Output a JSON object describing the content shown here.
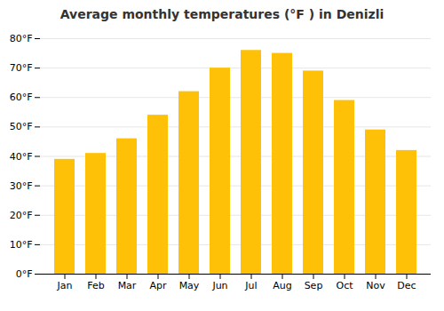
{
  "chart_data": {
    "type": "bar",
    "title": "Average monthly temperatures (°F ) in Denizli",
    "categories": [
      "Jan",
      "Feb",
      "Mar",
      "Apr",
      "May",
      "Jun",
      "Jul",
      "Aug",
      "Sep",
      "Oct",
      "Nov",
      "Dec"
    ],
    "values": [
      39,
      41,
      46,
      54,
      62,
      70,
      76,
      75,
      69,
      59,
      49,
      42
    ],
    "color": "#FFC107",
    "ylim": [
      0,
      80
    ],
    "yticks": [
      {
        "value": 0,
        "label": "0°F"
      },
      {
        "value": 10,
        "label": "10°F"
      },
      {
        "value": 20,
        "label": "20°F"
      },
      {
        "value": 30,
        "label": "30°F"
      },
      {
        "value": 40,
        "label": "40°F"
      },
      {
        "value": 50,
        "label": "50°F"
      },
      {
        "value": 60,
        "label": "60°F"
      },
      {
        "value": 70,
        "label": "70°F"
      },
      {
        "value": 80,
        "label": "80°F"
      }
    ],
    "grid": true
  }
}
